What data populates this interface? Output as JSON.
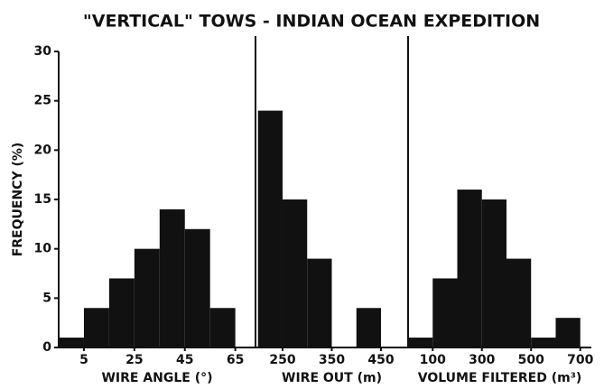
{
  "chart_data": [
    {
      "type": "histogram",
      "title": "\"VERTICAL\" TOWS - INDIAN OCEAN EXPEDITION",
      "ylabel": "FREQUENCY (%)",
      "ylim": [
        0,
        30
      ],
      "yticks": [
        0,
        5,
        10,
        15,
        20,
        25,
        30
      ],
      "xlabel": "WIRE ANGLE (°)",
      "bins": [
        -5,
        5,
        15,
        25,
        35,
        45,
        55,
        65
      ],
      "values": [
        1,
        4,
        7,
        10,
        14,
        12,
        4
      ],
      "xlim": [
        -5,
        73
      ],
      "xticks": [
        5,
        25,
        45,
        65
      ],
      "color": "#111111"
    },
    {
      "type": "histogram",
      "xlabel": "WIRE OUT (m)",
      "bins": [
        200,
        250,
        300,
        350,
        400,
        450
      ],
      "values": [
        24,
        15,
        9,
        0,
        4
      ],
      "xlim": [
        195,
        505
      ],
      "xticks": [
        250,
        350,
        450
      ],
      "color": "#111111"
    },
    {
      "type": "histogram",
      "xlabel": "VOLUME FILTERED (m³)",
      "bins": [
        0,
        100,
        200,
        300,
        400,
        500,
        600,
        700
      ],
      "values": [
        1,
        7,
        16,
        15,
        9,
        1,
        3
      ],
      "xlim": [
        0,
        745
      ],
      "xticks": [
        100,
        300,
        500,
        700
      ],
      "color": "#111111"
    }
  ]
}
